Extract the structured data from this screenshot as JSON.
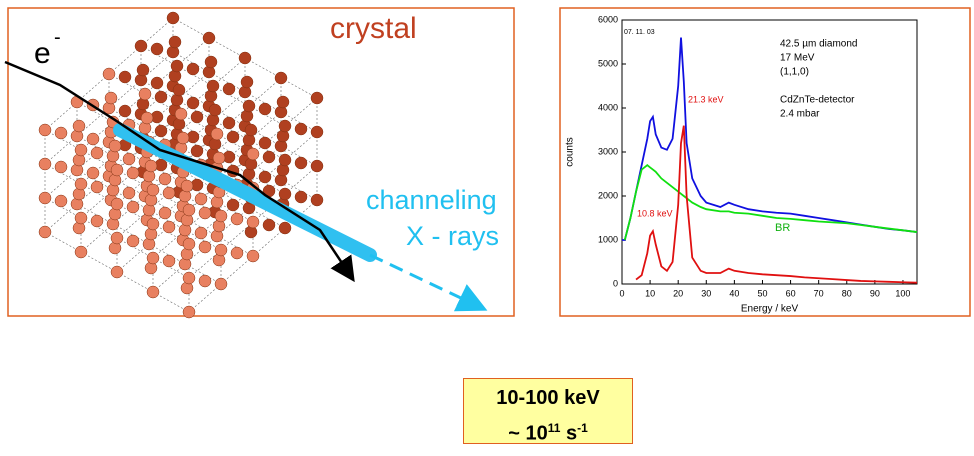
{
  "diagram": {
    "label": "crystal",
    "particle": "e",
    "particle_charge": "-",
    "beam_label": "channeling",
    "radiation_label": "X - rays"
  },
  "chart_data": {
    "type": "line",
    "x_label": "Energy / keV",
    "y_label": "counts",
    "xlim": [
      0,
      105
    ],
    "ylim": [
      0,
      6000
    ],
    "xticks": [
      0,
      10,
      20,
      30,
      40,
      50,
      60,
      70,
      80,
      90,
      100
    ],
    "yticks": [
      0,
      1000,
      2000,
      3000,
      4000,
      5000,
      6000
    ],
    "annotations": [
      "07. 11. 03",
      "42.5 µm diamond",
      "17 MeV",
      "(1,1,0)",
      "CdZnTe-detector",
      "2.4 mbar",
      "21.3 keV",
      "10.8 keV",
      "BR"
    ],
    "x": [
      0,
      1,
      3,
      5,
      7,
      9,
      10,
      11,
      12,
      14,
      16,
      18,
      20,
      21,
      22,
      23,
      25,
      28,
      30,
      35,
      38,
      40,
      45,
      50,
      55,
      60,
      65,
      70,
      75,
      80,
      85,
      90,
      95,
      100,
      105
    ],
    "series": [
      {
        "color": "#1010e0",
        "values": [
          1000,
          1000,
          1500,
          2100,
          2700,
          3300,
          3700,
          3800,
          3400,
          3100,
          3050,
          3300,
          4500,
          5600,
          4600,
          3200,
          2400,
          2000,
          1850,
          1750,
          1850,
          1800,
          1700,
          1650,
          1620,
          1600,
          1550,
          1500,
          1450,
          1400,
          1350,
          1300,
          1250,
          1220,
          1180
        ]
      },
      {
        "color": "#10e010",
        "values": [
          null,
          1000,
          1500,
          2100,
          2600,
          2700,
          2650,
          2600,
          2550,
          2400,
          2300,
          2200,
          2100,
          2050,
          2000,
          1950,
          1850,
          1750,
          1700,
          1650,
          1650,
          1620,
          1600,
          1550,
          1500,
          1480,
          1450,
          1420,
          1400,
          1380,
          1340,
          1300,
          1260,
          1220,
          1180
        ]
      },
      {
        "color": "#e01010",
        "values": [
          null,
          null,
          null,
          100,
          200,
          700,
          1100,
          1200,
          900,
          400,
          300,
          500,
          1800,
          3200,
          3600,
          2000,
          600,
          300,
          250,
          250,
          350,
          300,
          250,
          220,
          200,
          180,
          150,
          130,
          110,
          90,
          70,
          60,
          50,
          40,
          30
        ]
      }
    ]
  },
  "summary": {
    "energy": "10-100 keV",
    "rate": "~ 10",
    "rate_exponent": "11",
    "rate_unit": "s",
    "rate_unit_exponent": "-1"
  }
}
